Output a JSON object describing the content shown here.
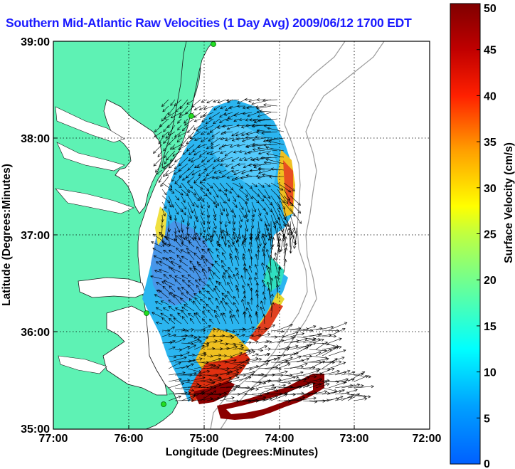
{
  "title": "Southern Mid-Atlantic Raw Velocities (1 Day Avg) 2009/06/12 1700 EDT",
  "map": {
    "xlabel": "Longitude (Degrees:Minutes)",
    "ylabel": "Latitude (Degrees:Minutes)",
    "x_ticks": [
      "77:00",
      "76:00",
      "75:00",
      "74:00",
      "73:00",
      "72:00"
    ],
    "y_ticks": [
      "39:00",
      "38:00",
      "37:00",
      "36:00",
      "35:00"
    ],
    "land_color": "#5ef2b4",
    "water_color": "#ffffff"
  },
  "colorbar": {
    "label": "Surface Velocity (cm/s)",
    "ticks": [
      "50",
      "45",
      "40",
      "35",
      "30",
      "25",
      "20",
      "15",
      "10",
      "5",
      "0"
    ],
    "range": [
      0,
      50
    ],
    "colormap": "jet"
  },
  "chart_data": {
    "type": "heatmap",
    "title": "Southern Mid-Atlantic Raw Velocities (1 Day Avg) 2009/06/12 1700 EDT",
    "xlabel": "Longitude (Degrees:Minutes)",
    "ylabel": "Latitude (Degrees:Minutes)",
    "xlim": [
      "77:00",
      "72:00"
    ],
    "ylim": [
      "35:00",
      "39:00"
    ],
    "grid": true,
    "colorbar_label": "Surface Velocity (cm/s)",
    "colorbar_range": [
      0,
      50
    ]
  }
}
